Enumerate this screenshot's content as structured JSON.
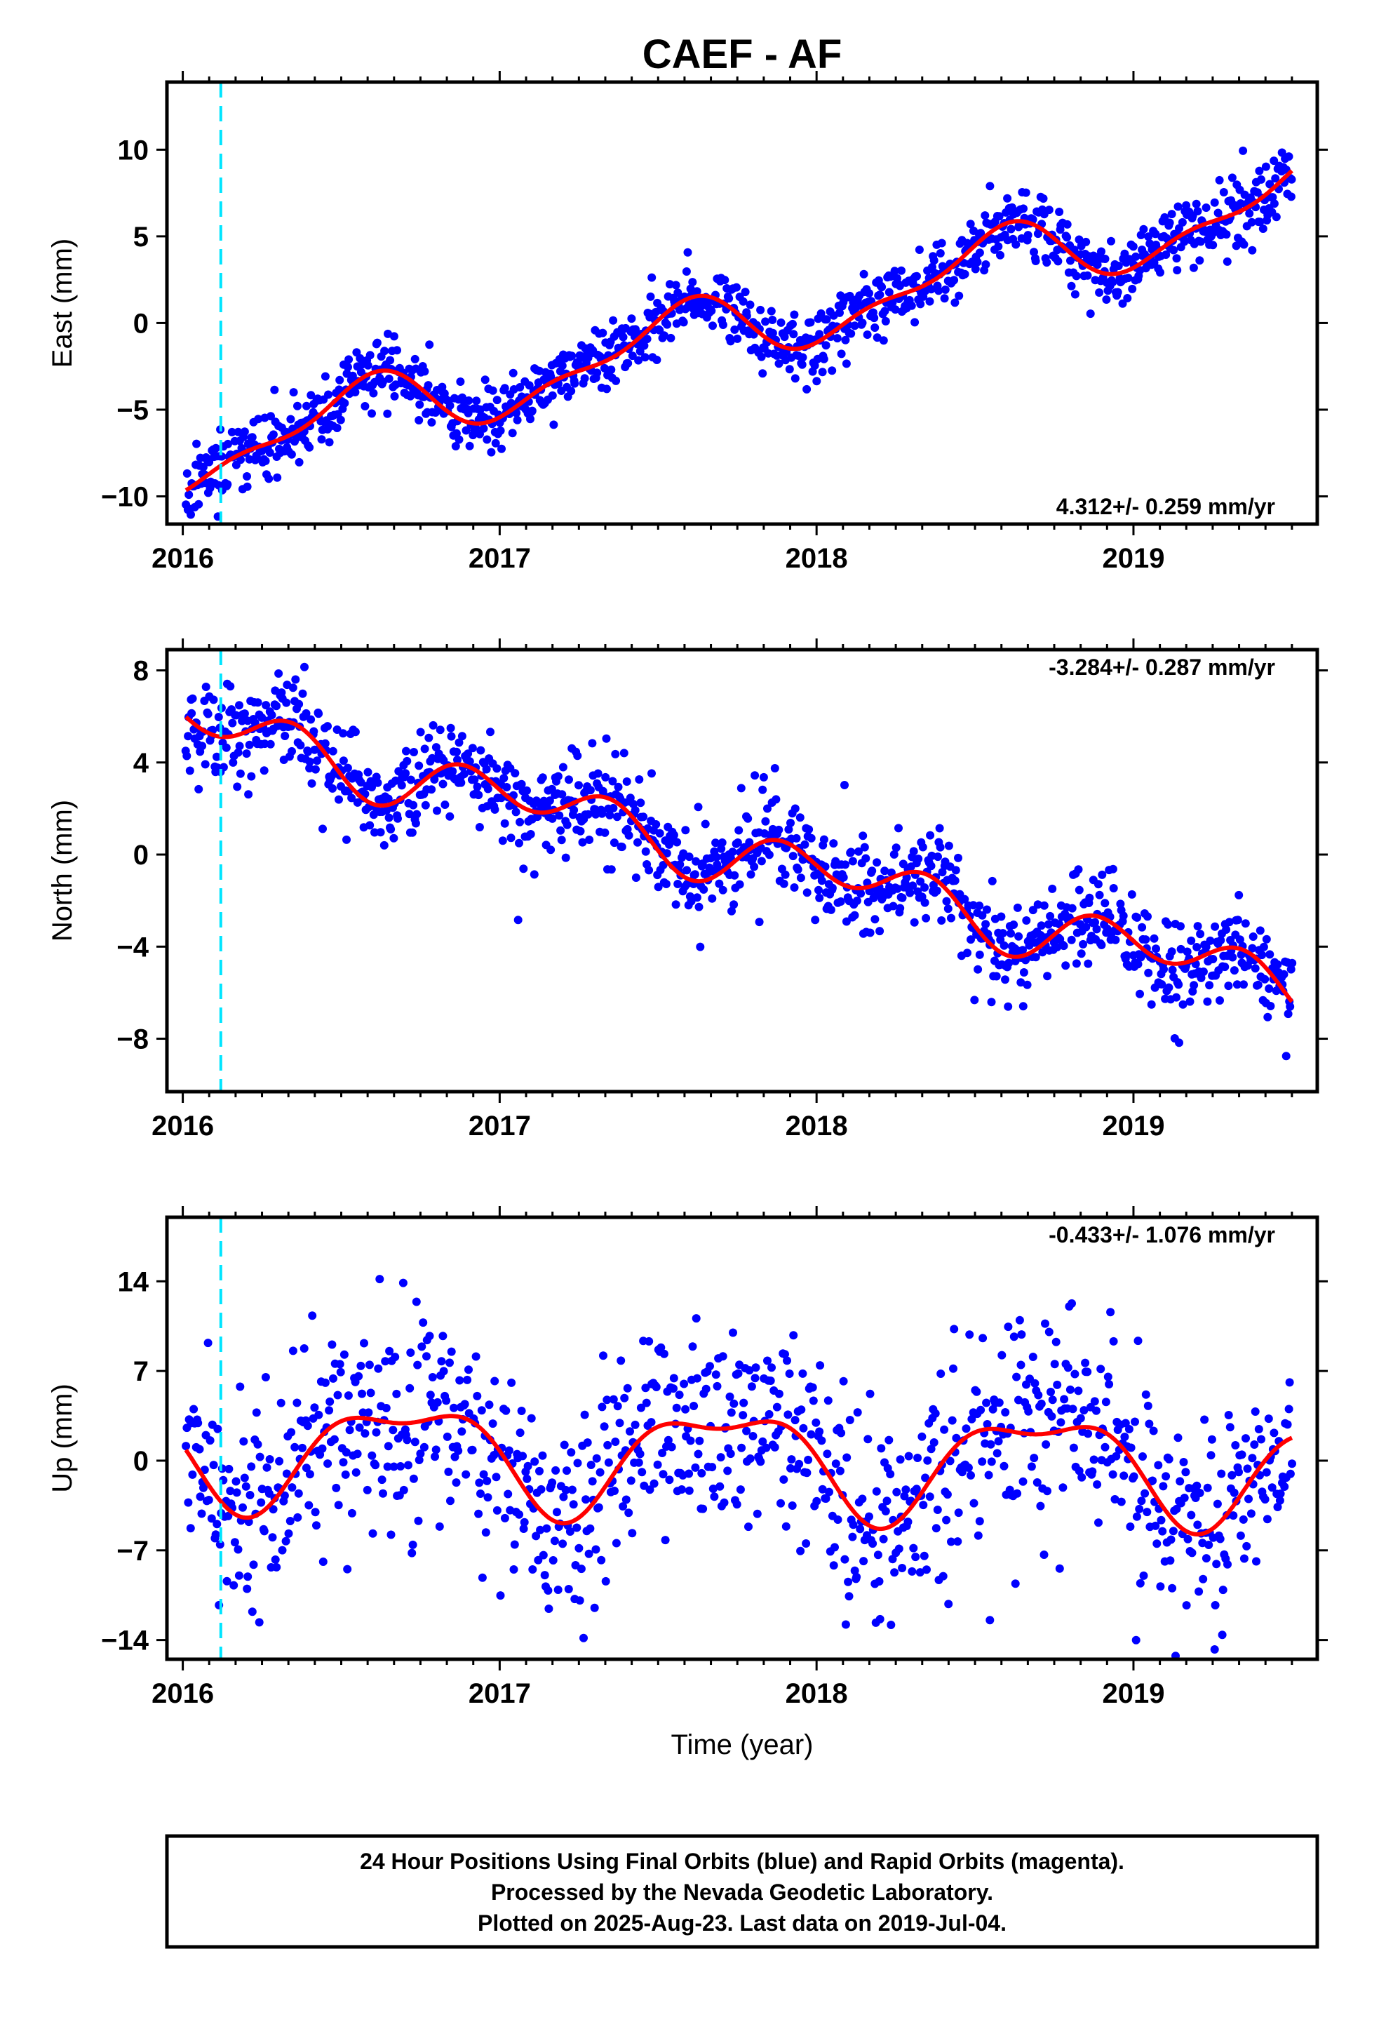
{
  "figure": {
    "title": "CAEF - AF",
    "x_axis_label": "Time (year)",
    "footer_lines": [
      "24 Hour Positions Using Final Orbits (blue) and Rapid Orbits (magenta).",
      "Processed by the Nevada Geodetic Laboratory.",
      "Plotted on 2025-Aug-23. Last data on 2019-Jul-04."
    ]
  },
  "colors": {
    "points": "#0000ff",
    "model_curve": "#ff0000",
    "event_marker": "#00e5ff",
    "frame": "#000000"
  },
  "chart_data": [
    {
      "type": "scatter",
      "panel": "east",
      "ylabel": "East (mm)",
      "rate_text": "4.312+/- 0.259 mm/yr",
      "xlim": [
        2015.95,
        2019.58
      ],
      "ylim": [
        -11.6,
        13.9
      ],
      "x_ticks": [
        2016,
        2017,
        2018,
        2019
      ],
      "y_ticks": [
        -10,
        -5,
        0,
        5,
        10
      ],
      "event_x": 2016.12,
      "model": {
        "intercept": -7.8,
        "trend": 4.312,
        "annual_sin": -0.58,
        "annual_cos": -1.72,
        "semiannual_sin": 0.72,
        "semiannual_cos": -0.23
      },
      "scatter_std": 0.95,
      "x_range": [
        2016.01,
        2019.5
      ],
      "n_points": 1150,
      "seed": 11
    },
    {
      "type": "scatter",
      "panel": "north",
      "ylabel": "North (mm)",
      "rate_text": "-3.284+/- 0.287 mm/yr",
      "xlim": [
        2015.95,
        2019.58
      ],
      "ylim": [
        -10.3,
        8.9
      ],
      "x_ticks": [
        2016,
        2017,
        2018,
        2019
      ],
      "y_ticks": [
        -8,
        -4,
        0,
        4,
        8
      ],
      "event_x": 2016.12,
      "model": {
        "intercept": 5.8,
        "trend": -3.284,
        "annual_sin": 0.45,
        "annual_cos": 0.5,
        "semiannual_sin": -0.95,
        "semiannual_cos": -0.2
      },
      "scatter_std": 0.95,
      "x_range": [
        2016.01,
        2019.5
      ],
      "n_points": 1150,
      "seed": 23
    },
    {
      "type": "scatter",
      "panel": "up",
      "ylabel": "Up (mm)",
      "rate_text": "-0.433+/- 1.076 mm/yr",
      "xlim": [
        2015.95,
        2019.58
      ],
      "ylim": [
        -15.5,
        19.0
      ],
      "x_ticks": [
        2016,
        2017,
        2018,
        2019
      ],
      "y_ticks": [
        -14,
        -7,
        0,
        7,
        14
      ],
      "event_x": 2016.12,
      "model": {
        "intercept": 1.0,
        "trend": -0.433,
        "annual_sin": -3.65,
        "annual_cos": -1.05,
        "semiannual_sin": -0.95,
        "semiannual_cos": 1.25
      },
      "scatter_std": 4.0,
      "x_range": [
        2016.01,
        2019.5
      ],
      "n_points": 1000,
      "seed": 37
    }
  ]
}
